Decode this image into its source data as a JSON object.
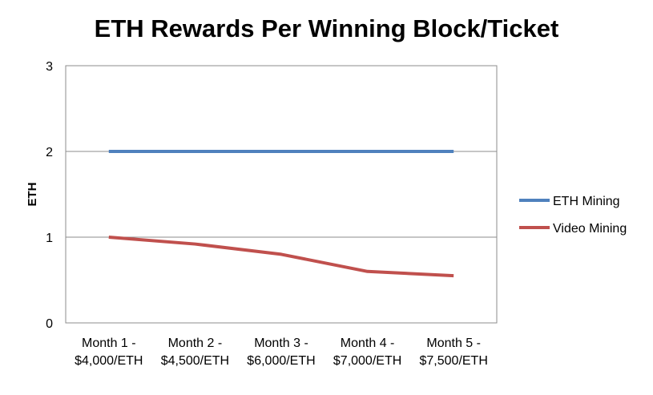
{
  "chart_data": {
    "type": "line",
    "title": "ETH Rewards Per Winning Block/Ticket",
    "xlabel": "",
    "ylabel": "ETH",
    "categories": [
      [
        "Month 1 -",
        "$4,000/ETH"
      ],
      [
        "Month 2 -",
        "$4,500/ETH"
      ],
      [
        "Month 3 -",
        "$6,000/ETH"
      ],
      [
        "Month 4 -",
        "$7,000/ETH"
      ],
      [
        "Month 5 -",
        "$7,500/ETH"
      ]
    ],
    "ylim": [
      0,
      3
    ],
    "yticks": [
      0,
      1,
      2,
      3
    ],
    "grid": true,
    "legend_position": "right",
    "series": [
      {
        "name": "ETH Mining",
        "color": "#4F81BD",
        "values": [
          2,
          2,
          2,
          2,
          2
        ]
      },
      {
        "name": "Video Mining",
        "color": "#C0504D",
        "values": [
          1.0,
          0.92,
          0.8,
          0.6,
          0.55
        ]
      }
    ]
  }
}
